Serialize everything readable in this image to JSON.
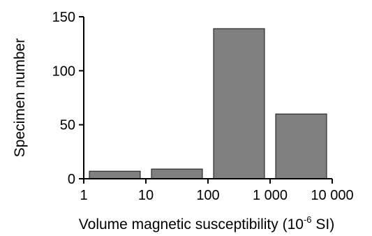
{
  "chart_data": {
    "type": "bar",
    "xscale": "log",
    "xlim": [
      1,
      10000
    ],
    "ylim": [
      0,
      150
    ],
    "bins": [
      {
        "from": 1,
        "to": 10,
        "value": 7
      },
      {
        "from": 10,
        "to": 100,
        "value": 9
      },
      {
        "from": 100,
        "to": 1000,
        "value": 139
      },
      {
        "from": 1000,
        "to": 10000,
        "value": 60
      }
    ],
    "x_ticks": [
      {
        "value": 1,
        "label": "1"
      },
      {
        "value": 10,
        "label": "10"
      },
      {
        "value": 100,
        "label": "100"
      },
      {
        "value": 1000,
        "label": "1 000"
      },
      {
        "value": 10000,
        "label": "10 000"
      }
    ],
    "y_ticks": [
      {
        "value": 0,
        "label": "0"
      },
      {
        "value": 50,
        "label": "50"
      },
      {
        "value": 100,
        "label": "100"
      },
      {
        "value": 150,
        "label": "150"
      }
    ],
    "xlabel": {
      "text": "Volume magnetic susceptibility (10",
      "superscript": "-6",
      "suffix": " SI)"
    },
    "ylabel": "Specimen number",
    "grid": false,
    "bar_color": "#808080"
  }
}
